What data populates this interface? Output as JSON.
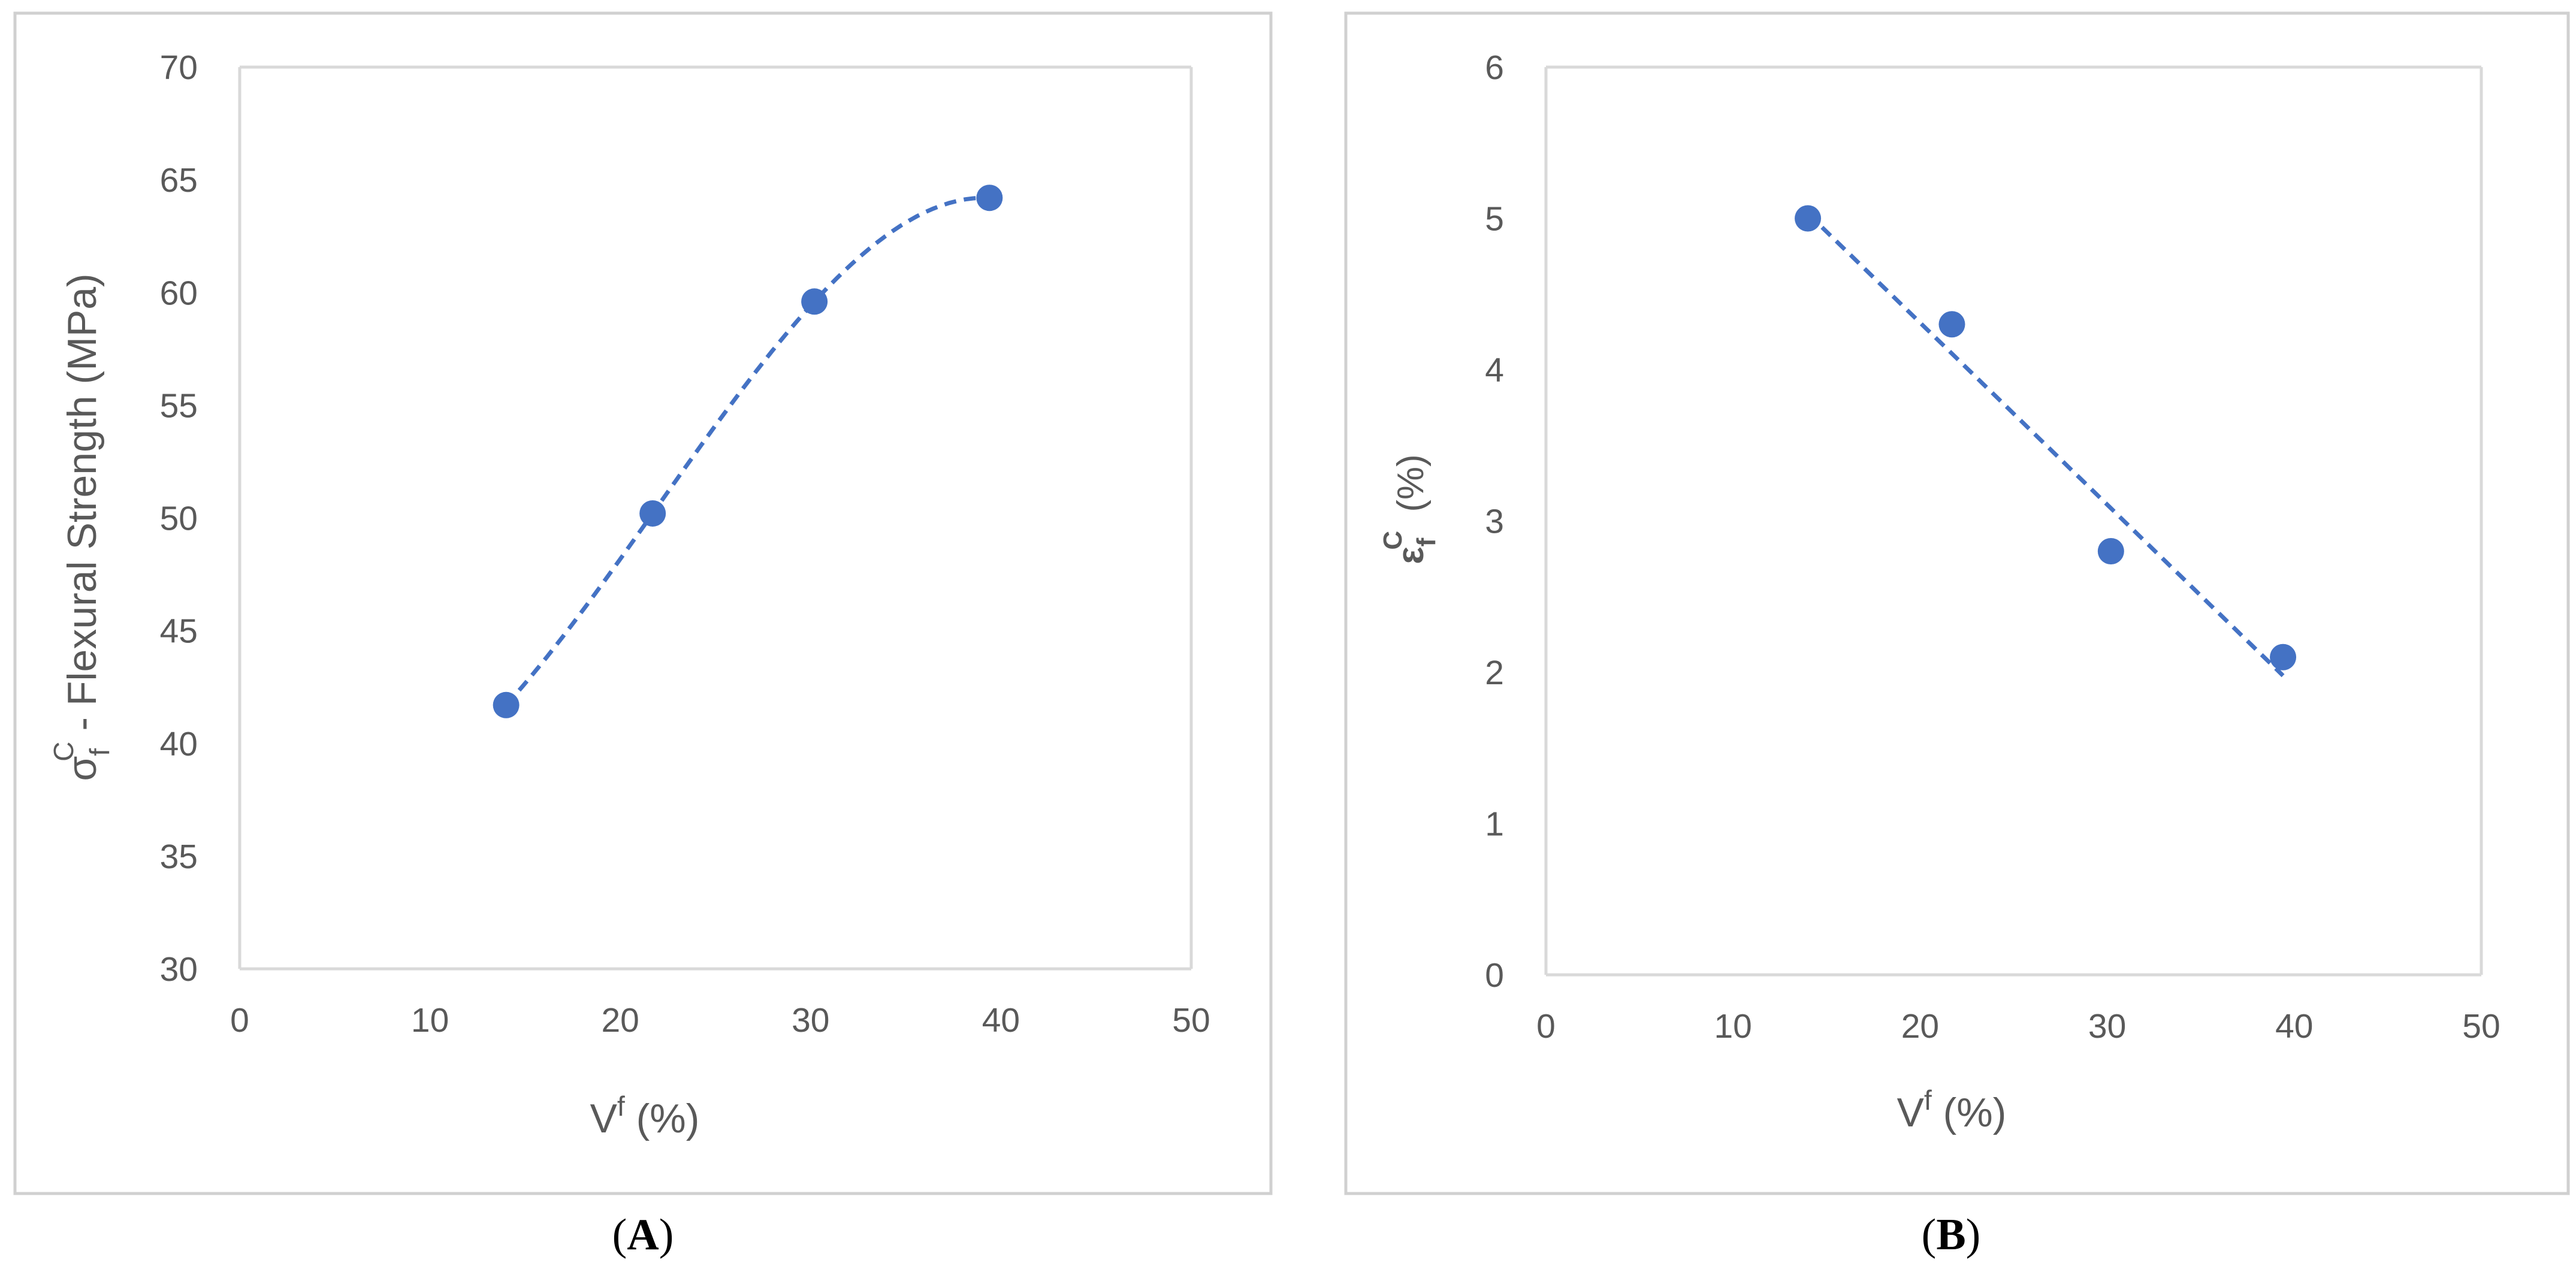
{
  "colors": {
    "marker": "#4472C4",
    "trend": "#4472C4",
    "axis": "#D9D9D9",
    "frame": "#D0D0D0",
    "text": "#595959"
  },
  "chart_data": [
    {
      "type": "scatter",
      "panel_label_letter": "A",
      "ylabel_symbol": "σ",
      "ylabel_sub": "f",
      "ylabel_sup": "C",
      "ylabel_text": "- Flexural Strength (MPa)",
      "xlabel_symbol": "V",
      "xlabel_sup": "f",
      "xlabel_text": " (%)",
      "xlim": [
        0,
        50
      ],
      "ylim": [
        30,
        70
      ],
      "xticks": [
        "0",
        "10",
        "20",
        "30",
        "40",
        "50"
      ],
      "yticks": [
        "30",
        "35",
        "40",
        "45",
        "50",
        "55",
        "60",
        "65",
        "70"
      ],
      "grid": false,
      "series": [
        {
          "x": [
            14,
            21.7,
            30.2,
            39.4
          ],
          "y": [
            41.7,
            50.2,
            59.6,
            64.2
          ]
        }
      ],
      "trendline": "polynomial, dashed"
    },
    {
      "type": "scatter",
      "panel_label_letter": "B",
      "ylabel_symbol": "ε",
      "ylabel_sub": "f",
      "ylabel_sup": "C",
      "ylabel_text": " (%)",
      "xlabel_symbol": "V",
      "xlabel_sup": "f",
      "xlabel_text": " (%)",
      "xlim": [
        0,
        50
      ],
      "ylim": [
        0,
        6
      ],
      "xticks": [
        "0",
        "10",
        "20",
        "30",
        "40",
        "50"
      ],
      "yticks": [
        "0",
        "1",
        "2",
        "3",
        "4",
        "5",
        "6"
      ],
      "grid": false,
      "series": [
        {
          "x": [
            14,
            21.7,
            30.2,
            39.4
          ],
          "y": [
            5.0,
            4.3,
            2.8,
            2.1
          ]
        }
      ],
      "trendline": "linear, dashed"
    }
  ]
}
